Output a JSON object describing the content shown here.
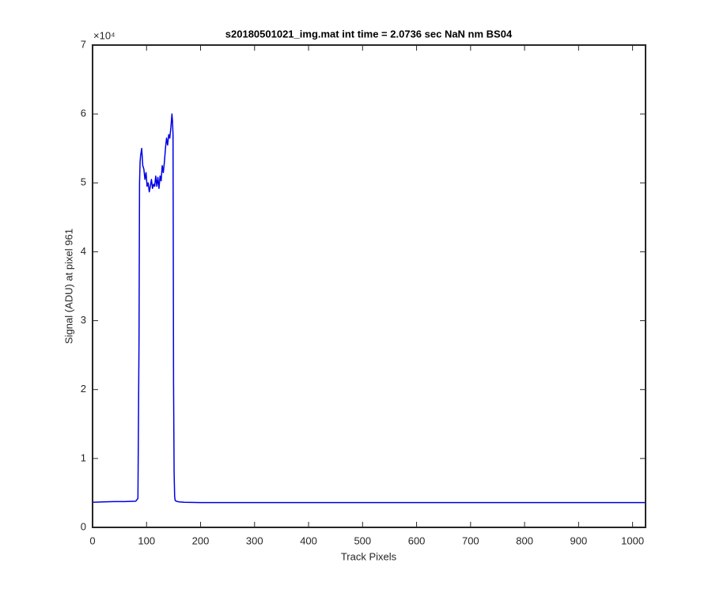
{
  "chart_data": {
    "type": "line",
    "title": "s20180501021_img.mat int time = 2.0736 sec  NaN nm BS04",
    "x_label": "Track Pixels",
    "y_label": "Signal (ADU) at pixel 961",
    "y_multiplier": "×10⁴",
    "xlim": [
      0,
      1024
    ],
    "ylim": [
      0,
      70000
    ],
    "xticks": [
      0,
      100,
      200,
      300,
      400,
      500,
      600,
      700,
      800,
      900,
      1000
    ],
    "yticks": [
      {
        "value": 0,
        "label": "0"
      },
      {
        "value": 10000,
        "label": "1"
      },
      {
        "value": 20000,
        "label": "2"
      },
      {
        "value": 30000,
        "label": "3"
      },
      {
        "value": 40000,
        "label": "4"
      },
      {
        "value": 50000,
        "label": "5"
      },
      {
        "value": 60000,
        "label": "6"
      },
      {
        "value": 70000,
        "label": "7"
      }
    ],
    "grid": false,
    "x": [
      0,
      20,
      40,
      60,
      80,
      84,
      86,
      87,
      88,
      89,
      90,
      91,
      93,
      95,
      97,
      99,
      101,
      103,
      105,
      107,
      109,
      111,
      113,
      115,
      117,
      119,
      121,
      123,
      125,
      127,
      129,
      131,
      133,
      135,
      137,
      139,
      141,
      143,
      145,
      147,
      148,
      149,
      150,
      151,
      152,
      153,
      155,
      160,
      170,
      200,
      300,
      400,
      500,
      600,
      700,
      800,
      900,
      1000,
      1024
    ],
    "series": [
      {
        "color": "#0000e6",
        "values": [
          3650,
          3700,
          3750,
          3750,
          3800,
          4200,
          27000,
          50000,
          53000,
          54000,
          54500,
          55000,
          52500,
          52000,
          50500,
          51500,
          49500,
          50000,
          48700,
          49500,
          50500,
          49200,
          49800,
          49500,
          51000,
          49500,
          50800,
          49200,
          51000,
          50300,
          52500,
          51500,
          53000,
          55000,
          56500,
          55500,
          57000,
          56500,
          58000,
          60000,
          59000,
          57000,
          21000,
          8000,
          4500,
          3900,
          3800,
          3700,
          3650,
          3600,
          3600,
          3600,
          3600,
          3600,
          3600,
          3600,
          3600,
          3600,
          3600
        ]
      }
    ]
  }
}
